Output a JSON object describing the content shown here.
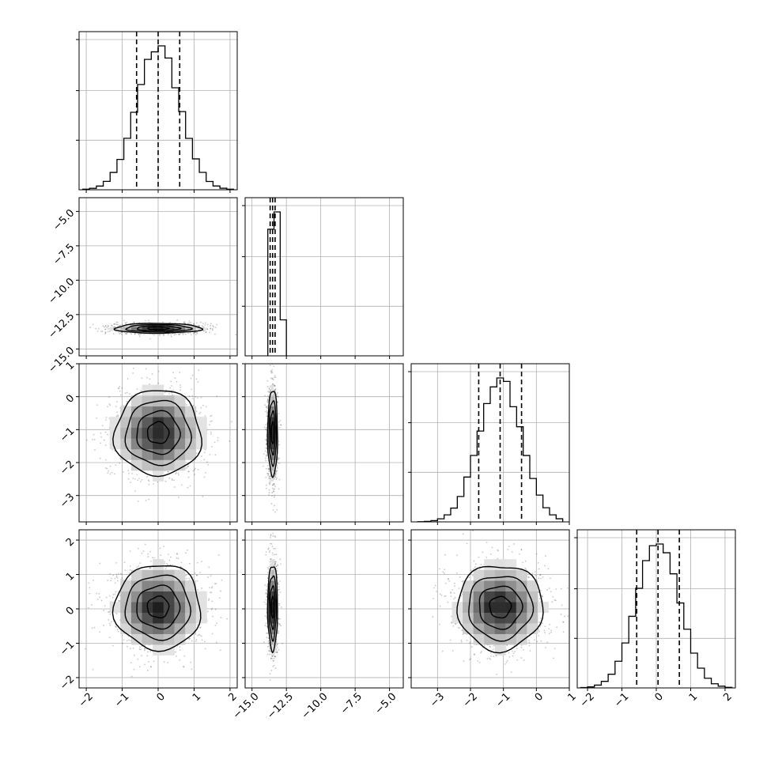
{
  "figure": {
    "type": "corner-plot",
    "grid": true,
    "n_params": 4
  },
  "chart_data": {
    "type": "corner",
    "grid": true,
    "params": [
      {
        "range": [
          -2.2,
          2.2
        ],
        "ticks": [
          -2,
          -1,
          0,
          1,
          2
        ],
        "tick_labels": [
          "−2",
          "−1",
          "0",
          "1",
          "2"
        ]
      },
      {
        "range": [
          -15.5,
          -4.0
        ],
        "ticks": [
          -15.0,
          -12.5,
          -10.0,
          -7.5,
          -5.0
        ],
        "tick_labels": [
          "−15.0",
          "−12.5",
          "−10.0",
          "−7.5",
          "−5.0"
        ]
      },
      {
        "range": [
          -3.8,
          1.0
        ],
        "ticks": [
          -3,
          -2,
          -1,
          0,
          1
        ],
        "tick_labels": [
          "−3",
          "−2",
          "−1",
          "0",
          "1"
        ]
      },
      {
        "range": [
          -2.3,
          2.3
        ],
        "ticks": [
          -2,
          -1,
          0,
          1,
          2
        ],
        "tick_labels": [
          "−2",
          "−1",
          "0",
          "1",
          "2"
        ]
      }
    ],
    "distributions": [
      {
        "mean": 0.0,
        "std": 0.6
      },
      {
        "mean": -13.5,
        "std": 0.18
      },
      {
        "mean": -1.1,
        "std": 0.65
      },
      {
        "mean": 0.05,
        "std": 0.62
      }
    ],
    "quantile_lines": [
      [
        -0.6,
        0.0,
        0.6
      ],
      [
        -13.68,
        -13.5,
        -13.32
      ],
      [
        -1.75,
        -1.1,
        -0.45
      ],
      [
        -0.57,
        0.05,
        0.67
      ]
    ],
    "histograms": [
      {
        "bins": [
          -2.1,
          2.1
        ],
        "n_bins": 22
      },
      {
        "bins": [
          -13.85,
          -12.5
        ],
        "counts_rel": [
          0.88,
          1.0,
          0.25
        ]
      },
      {
        "bins": [
          -3.6,
          0.8
        ],
        "n_bins": 22
      },
      {
        "bins": [
          -2.2,
          2.2
        ],
        "n_bins": 22
      }
    ],
    "pairs": [
      {
        "x": 0,
        "y": 1
      },
      {
        "x": 0,
        "y": 2
      },
      {
        "x": 1,
        "y": 2
      },
      {
        "x": 0,
        "y": 3
      },
      {
        "x": 1,
        "y": 3
      },
      {
        "x": 2,
        "y": 3
      }
    ],
    "contour_levels_sigma": [
      0.5,
      1.0,
      1.5,
      2.0
    ],
    "colors": {
      "line": "#000000",
      "grid": "#b0b0b0",
      "scatter": "#000000"
    }
  }
}
